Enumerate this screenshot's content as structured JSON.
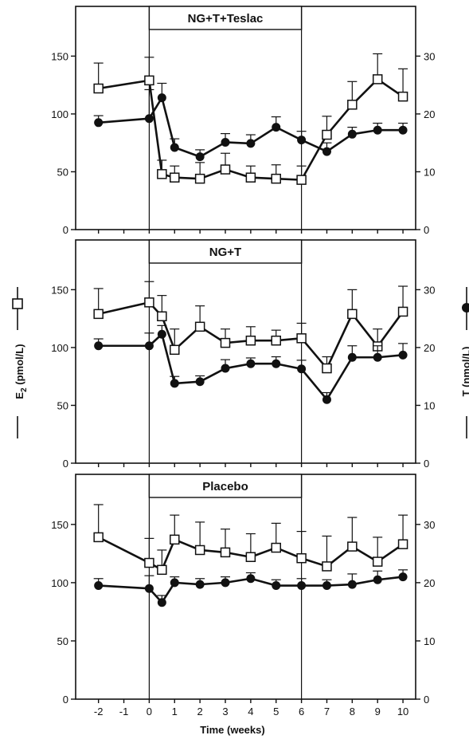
{
  "chart_data": [
    {
      "type": "line",
      "title": "NG+T+Teslac",
      "x": [
        -2,
        0,
        0.5,
        1,
        2,
        3,
        4,
        5,
        6,
        7,
        8,
        9,
        10
      ],
      "series": [
        {
          "marker": "open-square",
          "axis": "left",
          "values": [
            122,
            129,
            48,
            45,
            44,
            52,
            45,
            44,
            43,
            82,
            108,
            130,
            115
          ],
          "err": [
            22,
            20,
            12,
            10,
            14,
            14,
            10,
            12,
            12,
            16,
            20,
            22,
            24
          ]
        },
        {
          "marker": "filled-circle",
          "axis": "right",
          "values": [
            18.5,
            19.2,
            22.8,
            14.2,
            12.6,
            15.1,
            14.9,
            17.7,
            15.5,
            13.5,
            16.5,
            17.2,
            17.2
          ],
          "err": [
            1.2,
            5.0,
            2.5,
            1.5,
            1.2,
            1.5,
            1.5,
            1.8,
            1.5,
            1.5,
            1.2,
            1.2,
            1.2
          ]
        }
      ]
    },
    {
      "type": "line",
      "title": "NG+T",
      "x": [
        -2,
        0,
        0.5,
        1,
        2,
        3,
        4,
        5,
        6,
        7,
        8,
        9,
        10
      ],
      "series": [
        {
          "marker": "open-square",
          "axis": "left",
          "values": [
            129,
            139,
            127,
            98,
            118,
            104,
            106,
            106,
            108,
            82,
            129,
            101,
            131
          ],
          "err": [
            22,
            18,
            18,
            18,
            18,
            12,
            12,
            9,
            13,
            10,
            21,
            15,
            22
          ]
        },
        {
          "marker": "filled-circle",
          "axis": "right",
          "values": [
            20.3,
            20.3,
            22.3,
            13.8,
            14.1,
            16.4,
            17.2,
            17.2,
            16.3,
            11.0,
            18.3,
            18.3,
            18.7
          ],
          "err": [
            1.2,
            2.2,
            1.5,
            1.2,
            1.0,
            1.5,
            1.0,
            1.2,
            1.5,
            1.2,
            2.0,
            2.0,
            2.0
          ]
        }
      ]
    },
    {
      "type": "line",
      "title": "Placebo",
      "x": [
        -2,
        0,
        0.5,
        1,
        2,
        3,
        4,
        5,
        6,
        7,
        8,
        9,
        10
      ],
      "series": [
        {
          "marker": "open-square",
          "axis": "left",
          "values": [
            139,
            117,
            111,
            137,
            128,
            126,
            122,
            130,
            121,
            114,
            131,
            118,
            133
          ],
          "err": [
            28,
            21,
            17,
            21,
            24,
            20,
            20,
            21,
            23,
            26,
            25,
            21,
            25
          ]
        },
        {
          "marker": "filled-circle",
          "axis": "right",
          "values": [
            19.5,
            19.0,
            16.6,
            20.0,
            19.7,
            20.0,
            20.7,
            19.5,
            19.5,
            19.5,
            19.7,
            20.5,
            21.0
          ],
          "err": [
            1.2,
            2.2,
            1.2,
            1.0,
            1.0,
            1.0,
            1.0,
            1.0,
            1.2,
            1.0,
            1.8,
            1.5,
            1.2
          ]
        }
      ]
    }
  ],
  "axes": {
    "left_ylim": [
      0,
      193
    ],
    "left_ticks": [
      0,
      50,
      100,
      150
    ],
    "right_ylim": [
      0,
      38.6
    ],
    "right_ticks": [
      0,
      10,
      20,
      30
    ],
    "xlim": [
      -2.9,
      10.5
    ],
    "x_ticks": [
      -2,
      -1,
      0,
      1,
      2,
      3,
      4,
      5,
      6,
      7,
      8,
      9,
      10
    ],
    "treatment_period": [
      0,
      6
    ]
  },
  "labels": {
    "xlabel": "Time (weeks)",
    "ylabel_left_main": "E",
    "ylabel_left_sub": "2",
    "ylabel_left_unit": " (pmol/L)",
    "ylabel_right": "T (nmol/L)"
  },
  "colors": {
    "ink": "#111111",
    "background": "#ffffff"
  }
}
